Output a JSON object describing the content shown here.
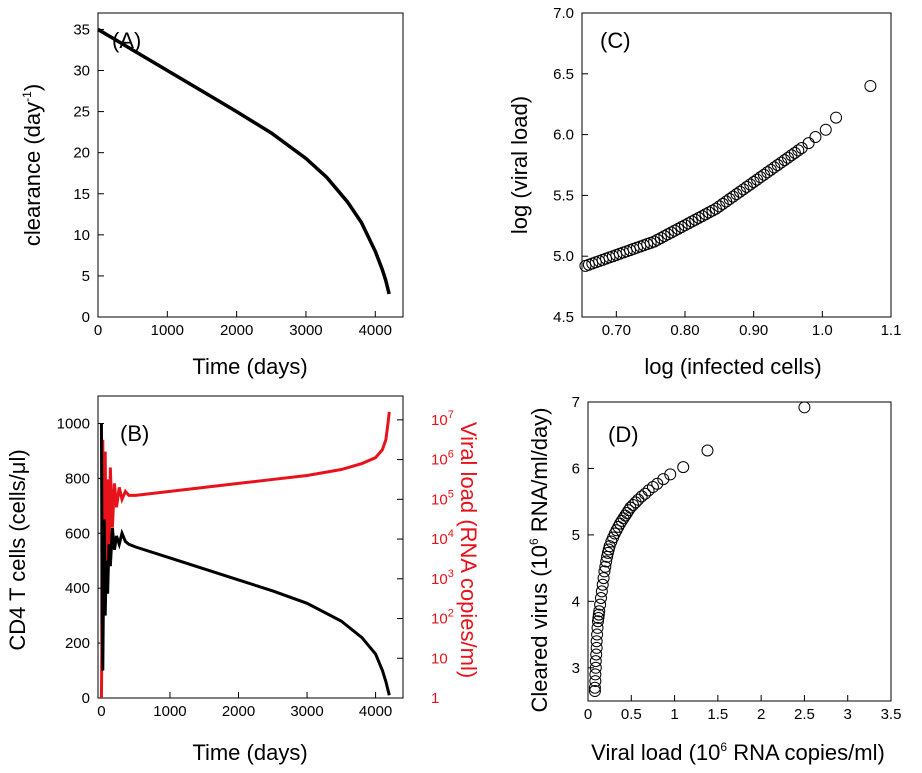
{
  "chart_data": [
    {
      "panel": "A",
      "type": "line",
      "panel_label": "(A)",
      "xlabel": "Time (days)",
      "ylabel_parts": [
        "clearance (day",
        "-1",
        ")"
      ],
      "xlim": [
        0,
        4400
      ],
      "ylim": [
        0,
        37
      ],
      "xticks": [
        "0",
        "1000",
        "2000",
        "3000",
        "4000"
      ],
      "yticks": [
        "0",
        "5",
        "10",
        "15",
        "20",
        "25",
        "30",
        "35"
      ],
      "series": [
        {
          "color": "#000000",
          "x": [
            0,
            200,
            500,
            1000,
            1500,
            2000,
            2500,
            3000,
            3300,
            3600,
            3800,
            4000,
            4100,
            4150,
            4200
          ],
          "y": [
            35,
            34,
            32.5,
            30,
            27.5,
            25,
            22.4,
            19.3,
            17,
            14,
            11.5,
            8,
            5.8,
            4.5,
            2.8
          ]
        }
      ]
    },
    {
      "panel": "B",
      "type": "line",
      "panel_label": "(B)",
      "xlabel": "Time (days)",
      "ylabel": "CD4 T cells (cells/μl)",
      "ylabel_right": "Viral load (RNA copies/ml)",
      "xlim": [
        -50,
        4400
      ],
      "ylim": [
        0,
        1100
      ],
      "ylim_right_log10": [
        0,
        7.6
      ],
      "xticks": [
        "0",
        "1000",
        "2000",
        "3000",
        "4000"
      ],
      "yticks": [
        "0",
        "200",
        "400",
        "600",
        "800",
        "1000"
      ],
      "yticks_right": [
        "1",
        "10",
        "10^2",
        "10^3",
        "10^4",
        "10^5",
        "10^6",
        "10^7"
      ],
      "series": [
        {
          "axis": "left",
          "color": "#000000",
          "x": [
            0,
            5,
            10,
            20,
            30,
            40,
            55,
            70,
            90,
            110,
            130,
            160,
            190,
            220,
            260,
            300,
            350,
            400,
            500,
            1000,
            1500,
            2000,
            2500,
            3000,
            3500,
            3800,
            4000,
            4100,
            4150,
            4200
          ],
          "y": [
            1000,
            700,
            300,
            100,
            400,
            650,
            300,
            500,
            380,
            560,
            480,
            620,
            540,
            590,
            560,
            600,
            570,
            560,
            550,
            510,
            470,
            430,
            390,
            345,
            280,
            220,
            160,
            100,
            60,
            10
          ]
        },
        {
          "axis": "right",
          "color": "#e8121b",
          "x": [
            0,
            5,
            10,
            20,
            30,
            40,
            55,
            70,
            90,
            110,
            130,
            160,
            190,
            220,
            260,
            300,
            350,
            400,
            500,
            1000,
            1500,
            2000,
            2500,
            3000,
            3500,
            3800,
            4000,
            4100,
            4150,
            4180,
            4200
          ],
          "y_log10": [
            0,
            1,
            6.3,
            6.5,
            4,
            2.5,
            6.2,
            3,
            5.5,
            3.5,
            5.8,
            4.3,
            5.4,
            4.8,
            5.3,
            5.0,
            5.2,
            5.1,
            5.1,
            5.2,
            5.3,
            5.4,
            5.5,
            5.6,
            5.75,
            5.9,
            6.05,
            6.25,
            6.5,
            6.9,
            7.2
          ]
        }
      ]
    },
    {
      "panel": "C",
      "type": "scatter",
      "panel_label": "(C)",
      "xlabel": "log (infected cells)",
      "ylabel": "log (viral load)",
      "xlim": [
        0.65,
        1.1
      ],
      "ylim": [
        4.5,
        7.0
      ],
      "xticks": [
        "0.70",
        "0.80",
        "0.90",
        "1.0",
        "1.1"
      ],
      "yticks": [
        "4.5",
        "5.0",
        "5.5",
        "6.0",
        "6.5",
        "7.0"
      ],
      "x": [
        0.655,
        0.66,
        0.665,
        0.67,
        0.675,
        0.68,
        0.685,
        0.69,
        0.695,
        0.7,
        0.705,
        0.71,
        0.715,
        0.72,
        0.725,
        0.73,
        0.735,
        0.74,
        0.745,
        0.75,
        0.755,
        0.76,
        0.765,
        0.77,
        0.775,
        0.78,
        0.785,
        0.79,
        0.795,
        0.8,
        0.805,
        0.81,
        0.815,
        0.82,
        0.825,
        0.83,
        0.835,
        0.84,
        0.845,
        0.85,
        0.855,
        0.86,
        0.865,
        0.87,
        0.875,
        0.88,
        0.885,
        0.89,
        0.895,
        0.9,
        0.905,
        0.91,
        0.915,
        0.92,
        0.925,
        0.93,
        0.935,
        0.94,
        0.945,
        0.95,
        0.955,
        0.96,
        0.965,
        0.97,
        0.98,
        0.99,
        1.005,
        1.02,
        1.07
      ],
      "y": [
        4.92,
        4.93,
        4.94,
        4.95,
        4.96,
        4.97,
        4.98,
        4.99,
        5.0,
        5.01,
        5.02,
        5.03,
        5.04,
        5.05,
        5.06,
        5.07,
        5.08,
        5.09,
        5.1,
        5.11,
        5.12,
        5.135,
        5.15,
        5.165,
        5.18,
        5.195,
        5.21,
        5.225,
        5.24,
        5.255,
        5.27,
        5.285,
        5.3,
        5.315,
        5.33,
        5.345,
        5.36,
        5.375,
        5.39,
        5.41,
        5.43,
        5.45,
        5.47,
        5.49,
        5.51,
        5.53,
        5.55,
        5.57,
        5.59,
        5.61,
        5.63,
        5.65,
        5.67,
        5.69,
        5.71,
        5.73,
        5.75,
        5.77,
        5.79,
        5.81,
        5.83,
        5.85,
        5.87,
        5.89,
        5.93,
        5.98,
        6.04,
        6.14,
        6.4
      ]
    },
    {
      "panel": "D",
      "type": "scatter",
      "panel_label": "(D)",
      "xlabel_parts": [
        "Viral load (10",
        "6",
        " RNA copies/ml)"
      ],
      "ylabel_parts": [
        "Cleared virus (10",
        "6",
        " RNA/ml/day)"
      ],
      "xlim": [
        0,
        3.5
      ],
      "ylim": [
        2.5,
        7.0
      ],
      "xticks": [
        "0",
        "0.5",
        "1",
        "1.5",
        "2",
        "2.5",
        "3",
        "3.5"
      ],
      "yticks": [
        "3",
        "4",
        "5",
        "6",
        "7"
      ],
      "x": [
        0.08,
        0.08,
        0.085,
        0.085,
        0.09,
        0.09,
        0.095,
        0.1,
        0.1,
        0.105,
        0.11,
        0.115,
        0.12,
        0.125,
        0.13,
        0.14,
        0.15,
        0.16,
        0.17,
        0.18,
        0.19,
        0.2,
        0.21,
        0.22,
        0.23,
        0.24,
        0.25,
        0.27,
        0.29,
        0.31,
        0.33,
        0.35,
        0.37,
        0.39,
        0.41,
        0.43,
        0.45,
        0.47,
        0.49,
        0.52,
        0.55,
        0.58,
        0.62,
        0.66,
        0.7,
        0.75,
        0.8,
        0.87,
        0.95,
        1.1,
        1.38,
        2.5
      ],
      "y": [
        2.65,
        2.7,
        2.8,
        2.9,
        3.0,
        3.1,
        3.2,
        3.3,
        3.4,
        3.5,
        3.6,
        3.7,
        3.75,
        3.8,
        3.85,
        3.95,
        4.05,
        4.15,
        4.25,
        4.35,
        4.45,
        4.52,
        4.6,
        4.67,
        4.73,
        4.78,
        4.83,
        4.9,
        4.96,
        5.02,
        5.07,
        5.12,
        5.17,
        5.21,
        5.25,
        5.29,
        5.33,
        5.37,
        5.41,
        5.45,
        5.49,
        5.53,
        5.58,
        5.62,
        5.67,
        5.72,
        5.77,
        5.84,
        5.91,
        6.02,
        6.27,
        6.92
      ]
    }
  ]
}
